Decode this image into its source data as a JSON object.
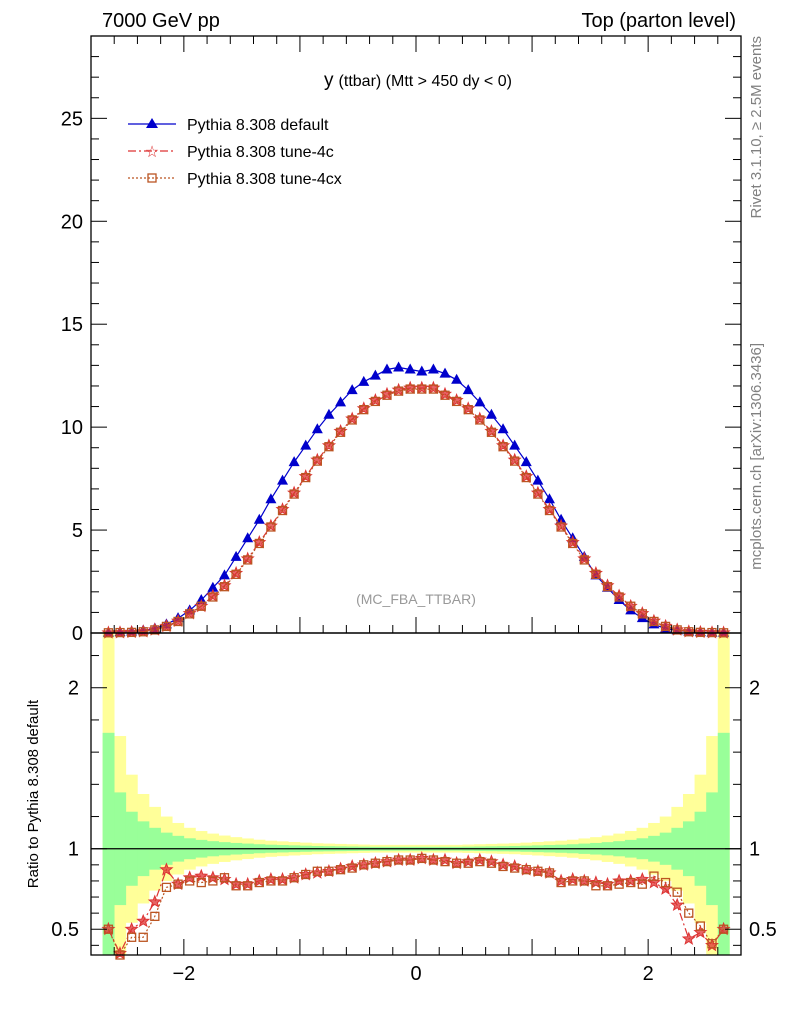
{
  "header": {
    "left": "7000 GeV pp",
    "right": "Top (parton level)"
  },
  "side": {
    "rivet": "Rivet 3.1.10, ≥ 2.5M events",
    "mcplots": "mcplots.cern.ch [arXiv:1306.3436]"
  },
  "chart_data": [
    {
      "type": "line",
      "title": "y (ttbar) (Mtt > 450 dy < 0)",
      "title_main": "y",
      "title_sub": "(ttbar) (Mtt > 450 dy < 0)",
      "watermark": "(MC_FBA_TTBAR)",
      "xlim": [
        -2.8,
        2.8
      ],
      "ylim": [
        0,
        29
      ],
      "y_ticks": [
        "0",
        "5",
        "10",
        "15",
        "20",
        "25"
      ],
      "y_tick_values": [
        0,
        5,
        10,
        15,
        20,
        25
      ],
      "legend_position": "top-left",
      "x": [
        -2.65,
        -2.55,
        -2.45,
        -2.35,
        -2.25,
        -2.15,
        -2.05,
        -1.95,
        -1.85,
        -1.75,
        -1.65,
        -1.55,
        -1.45,
        -1.35,
        -1.25,
        -1.15,
        -1.05,
        -0.95,
        -0.85,
        -0.75,
        -0.65,
        -0.55,
        -0.45,
        -0.35,
        -0.25,
        -0.15,
        -0.05,
        0.05,
        0.15,
        0.25,
        0.35,
        0.45,
        0.55,
        0.65,
        0.75,
        0.85,
        0.95,
        1.05,
        1.15,
        1.25,
        1.35,
        1.45,
        1.55,
        1.65,
        1.75,
        1.85,
        1.95,
        2.05,
        2.15,
        2.25,
        2.35,
        2.45,
        2.55,
        2.65
      ],
      "series": [
        {
          "name": "Pythia 8.308 default",
          "color": "#0000cc",
          "marker": "triangle",
          "line": "solid",
          "values": [
            0.02,
            0.04,
            0.07,
            0.12,
            0.22,
            0.42,
            0.72,
            1.1,
            1.6,
            2.2,
            2.8,
            3.7,
            4.6,
            5.5,
            6.5,
            7.4,
            8.3,
            9.1,
            9.9,
            10.6,
            11.2,
            11.8,
            12.2,
            12.5,
            12.8,
            12.9,
            12.8,
            12.7,
            12.8,
            12.6,
            12.3,
            11.8,
            11.2,
            10.6,
            9.9,
            9.1,
            8.3,
            7.4,
            6.5,
            5.5,
            4.6,
            3.7,
            2.8,
            2.2,
            1.6,
            1.1,
            0.72,
            0.42,
            0.22,
            0.12,
            0.07,
            0.04,
            0.02,
            0.02
          ]
        },
        {
          "name": "Pythia 8.308 tune-4c",
          "color": "#dd3333",
          "marker": "star",
          "line": "dashdot",
          "values": [
            0.01,
            0.02,
            0.04,
            0.07,
            0.16,
            0.33,
            0.58,
            0.95,
            1.3,
            1.8,
            2.3,
            2.9,
            3.6,
            4.4,
            5.2,
            6.0,
            6.8,
            7.6,
            8.4,
            9.1,
            9.8,
            10.4,
            10.9,
            11.3,
            11.6,
            11.8,
            11.9,
            11.9,
            11.9,
            11.6,
            11.3,
            10.9,
            10.4,
            9.8,
            9.1,
            8.4,
            7.6,
            6.8,
            6.0,
            5.2,
            4.4,
            3.6,
            2.9,
            2.3,
            1.8,
            1.3,
            0.95,
            0.58,
            0.33,
            0.16,
            0.07,
            0.04,
            0.02,
            0.01
          ]
        },
        {
          "name": "Pythia 8.308 tune-4cx",
          "color": "#bb5522",
          "marker": "square-open",
          "line": "dotted",
          "values": [
            0.01,
            0.02,
            0.03,
            0.06,
            0.15,
            0.32,
            0.56,
            0.93,
            1.3,
            1.75,
            2.25,
            2.85,
            3.55,
            4.35,
            5.15,
            5.95,
            6.75,
            7.55,
            8.35,
            9.05,
            9.75,
            10.35,
            10.85,
            11.25,
            11.55,
            11.75,
            11.85,
            11.85,
            11.85,
            11.55,
            11.25,
            10.85,
            10.35,
            9.75,
            9.05,
            8.35,
            7.55,
            6.75,
            5.95,
            5.15,
            4.35,
            3.55,
            2.85,
            2.25,
            1.75,
            1.3,
            0.93,
            0.56,
            0.32,
            0.15,
            0.06,
            0.03,
            0.02,
            0.01
          ]
        }
      ]
    },
    {
      "type": "line",
      "ylabel": "Ratio to Pythia 8.308 default",
      "xlim": [
        -2.8,
        2.8
      ],
      "ylim": [
        0.34,
        2.34
      ],
      "x_ticks": [
        "−2",
        "0",
        "2"
      ],
      "x_tick_values": [
        -2,
        0,
        2
      ],
      "y_ticks": [
        "0.5",
        "1",
        "2"
      ],
      "y_tick_values": [
        0.5,
        1,
        2
      ],
      "band_colors": {
        "inner": "#99ff99",
        "outer": "#ffff99"
      },
      "band_inner": [
        1.72,
        1.35,
        1.23,
        1.17,
        1.13,
        1.1,
        1.08,
        1.065,
        1.055,
        1.047,
        1.041,
        1.036,
        1.032,
        1.028,
        1.025,
        1.023,
        1.021,
        1.019,
        1.017,
        1.016,
        1.015,
        1.014,
        1.013,
        1.012,
        1.012,
        1.012,
        1.012,
        1.012,
        1.012,
        1.012,
        1.012,
        1.013,
        1.014,
        1.015,
        1.016,
        1.017,
        1.019,
        1.021,
        1.023,
        1.025,
        1.028,
        1.032,
        1.036,
        1.041,
        1.047,
        1.055,
        1.065,
        1.08,
        1.1,
        1.13,
        1.17,
        1.23,
        1.35,
        1.72
      ],
      "band_outer": [
        2.4,
        1.7,
        1.46,
        1.34,
        1.26,
        1.2,
        1.16,
        1.13,
        1.11,
        1.094,
        1.082,
        1.072,
        1.064,
        1.056,
        1.05,
        1.046,
        1.042,
        1.038,
        1.034,
        1.032,
        1.03,
        1.028,
        1.026,
        1.024,
        1.024,
        1.024,
        1.024,
        1.024,
        1.024,
        1.024,
        1.024,
        1.026,
        1.028,
        1.03,
        1.032,
        1.034,
        1.038,
        1.042,
        1.046,
        1.05,
        1.056,
        1.064,
        1.072,
        1.082,
        1.094,
        1.11,
        1.13,
        1.16,
        1.2,
        1.26,
        1.34,
        1.46,
        1.7,
        2.4
      ],
      "series": [
        {
          "name": "Pythia 8.308 tune-4c",
          "color": "#dd3333",
          "marker": "star",
          "line": "dashdot",
          "values": [
            0.5,
            0.35,
            0.5,
            0.55,
            0.67,
            0.87,
            0.78,
            0.82,
            0.83,
            0.82,
            0.81,
            0.78,
            0.78,
            0.8,
            0.81,
            0.81,
            0.82,
            0.84,
            0.85,
            0.86,
            0.875,
            0.89,
            0.9,
            0.91,
            0.92,
            0.93,
            0.93,
            0.94,
            0.93,
            0.93,
            0.91,
            0.92,
            0.93,
            0.92,
            0.9,
            0.89,
            0.87,
            0.86,
            0.85,
            0.8,
            0.81,
            0.8,
            0.79,
            0.78,
            0.8,
            0.8,
            0.81,
            0.79,
            0.75,
            0.65,
            0.44,
            0.48,
            0.4,
            0.5
          ]
        },
        {
          "name": "Pythia 8.308 tune-4cx",
          "color": "#bb5522",
          "marker": "square-open",
          "line": "dotted",
          "values": [
            0.5,
            0.34,
            0.45,
            0.45,
            0.58,
            0.76,
            0.78,
            0.8,
            0.79,
            0.8,
            0.82,
            0.77,
            0.77,
            0.79,
            0.8,
            0.8,
            0.82,
            0.84,
            0.86,
            0.86,
            0.87,
            0.88,
            0.9,
            0.91,
            0.92,
            0.93,
            0.93,
            0.94,
            0.93,
            0.92,
            0.91,
            0.91,
            0.92,
            0.91,
            0.89,
            0.88,
            0.87,
            0.86,
            0.85,
            0.79,
            0.8,
            0.8,
            0.77,
            0.77,
            0.78,
            0.79,
            0.78,
            0.83,
            0.79,
            0.73,
            0.6,
            0.52,
            0.41,
            0.5
          ]
        }
      ]
    }
  ]
}
